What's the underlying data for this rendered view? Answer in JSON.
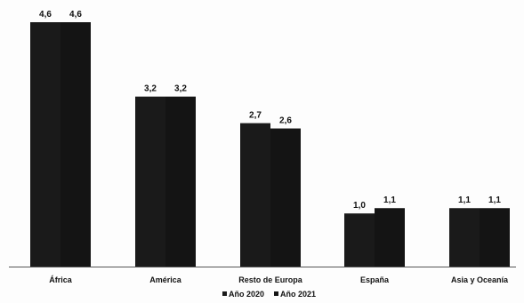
{
  "chart_data": {
    "type": "bar",
    "categories": [
      "África",
      "América",
      "Resto de Europa",
      "España",
      "Asia y Oceanía"
    ],
    "series": [
      {
        "name": "Año 2020",
        "values": [
          4.6,
          3.2,
          2.7,
          1.0,
          1.1
        ],
        "labels": [
          "4,6",
          "3,2",
          "2,7",
          "1,0",
          "1,1"
        ]
      },
      {
        "name": "Año 2021",
        "values": [
          4.6,
          3.2,
          2.6,
          1.1,
          1.1
        ],
        "labels": [
          "4,6",
          "3,2",
          "2,6",
          "1,1",
          "1,1"
        ]
      }
    ],
    "title": "",
    "xlabel": "",
    "ylabel": "",
    "ylim": [
      0,
      4.6
    ],
    "grid": false,
    "legend_position": "bottom-center",
    "colors": {
      "bar_2020": "#1a1a1a",
      "bar_2021": "#141414",
      "axis": "#555555"
    }
  }
}
